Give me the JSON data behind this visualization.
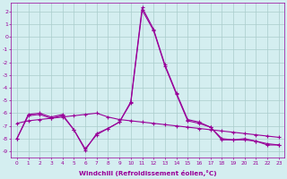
{
  "x": [
    0,
    1,
    2,
    3,
    4,
    5,
    6,
    7,
    8,
    9,
    10,
    11,
    12,
    13,
    14,
    15,
    16,
    17,
    18,
    19,
    20,
    21,
    22,
    23
  ],
  "line_main": [
    -8.0,
    -6.1,
    -6.0,
    -6.3,
    -6.1,
    -7.3,
    -8.8,
    -7.7,
    -7.2,
    -6.7,
    -5.1,
    2.3,
    0.6,
    -2.2,
    -4.4,
    -6.5,
    -6.7,
    -7.1,
    -8.1,
    -8.1,
    -8.0,
    -8.2,
    -8.5,
    -8.5
  ],
  "line_trend": [
    -6.8,
    -6.6,
    -6.5,
    -6.4,
    -6.3,
    -6.2,
    -6.1,
    -6.0,
    -6.3,
    -6.5,
    -6.6,
    -6.7,
    -6.8,
    -6.9,
    -7.0,
    -7.1,
    -7.2,
    -7.3,
    -7.4,
    -7.5,
    -7.6,
    -7.7,
    -7.8,
    -7.9
  ],
  "line_smooth": [
    -8.0,
    -6.2,
    -6.1,
    -6.4,
    -6.2,
    -7.3,
    -8.9,
    -7.6,
    -7.2,
    -6.7,
    -5.2,
    2.1,
    0.5,
    -2.3,
    -4.5,
    -6.6,
    -6.8,
    -7.1,
    -8.0,
    -8.1,
    -8.1,
    -8.2,
    -8.4,
    -8.5
  ],
  "color": "#990099",
  "bg_color": "#d4eef0",
  "grid_color": "#aacccc",
  "xlabel": "Windchill (Refroidissement éolien,°C)",
  "ylim": [
    -9.5,
    2.7
  ],
  "yticks": [
    2,
    1,
    0,
    -1,
    -2,
    -3,
    -4,
    -5,
    -6,
    -7,
    -8,
    -9
  ],
  "xticks": [
    0,
    1,
    2,
    3,
    4,
    5,
    6,
    7,
    8,
    9,
    10,
    11,
    12,
    13,
    14,
    15,
    16,
    17,
    18,
    19,
    20,
    21,
    22,
    23
  ]
}
